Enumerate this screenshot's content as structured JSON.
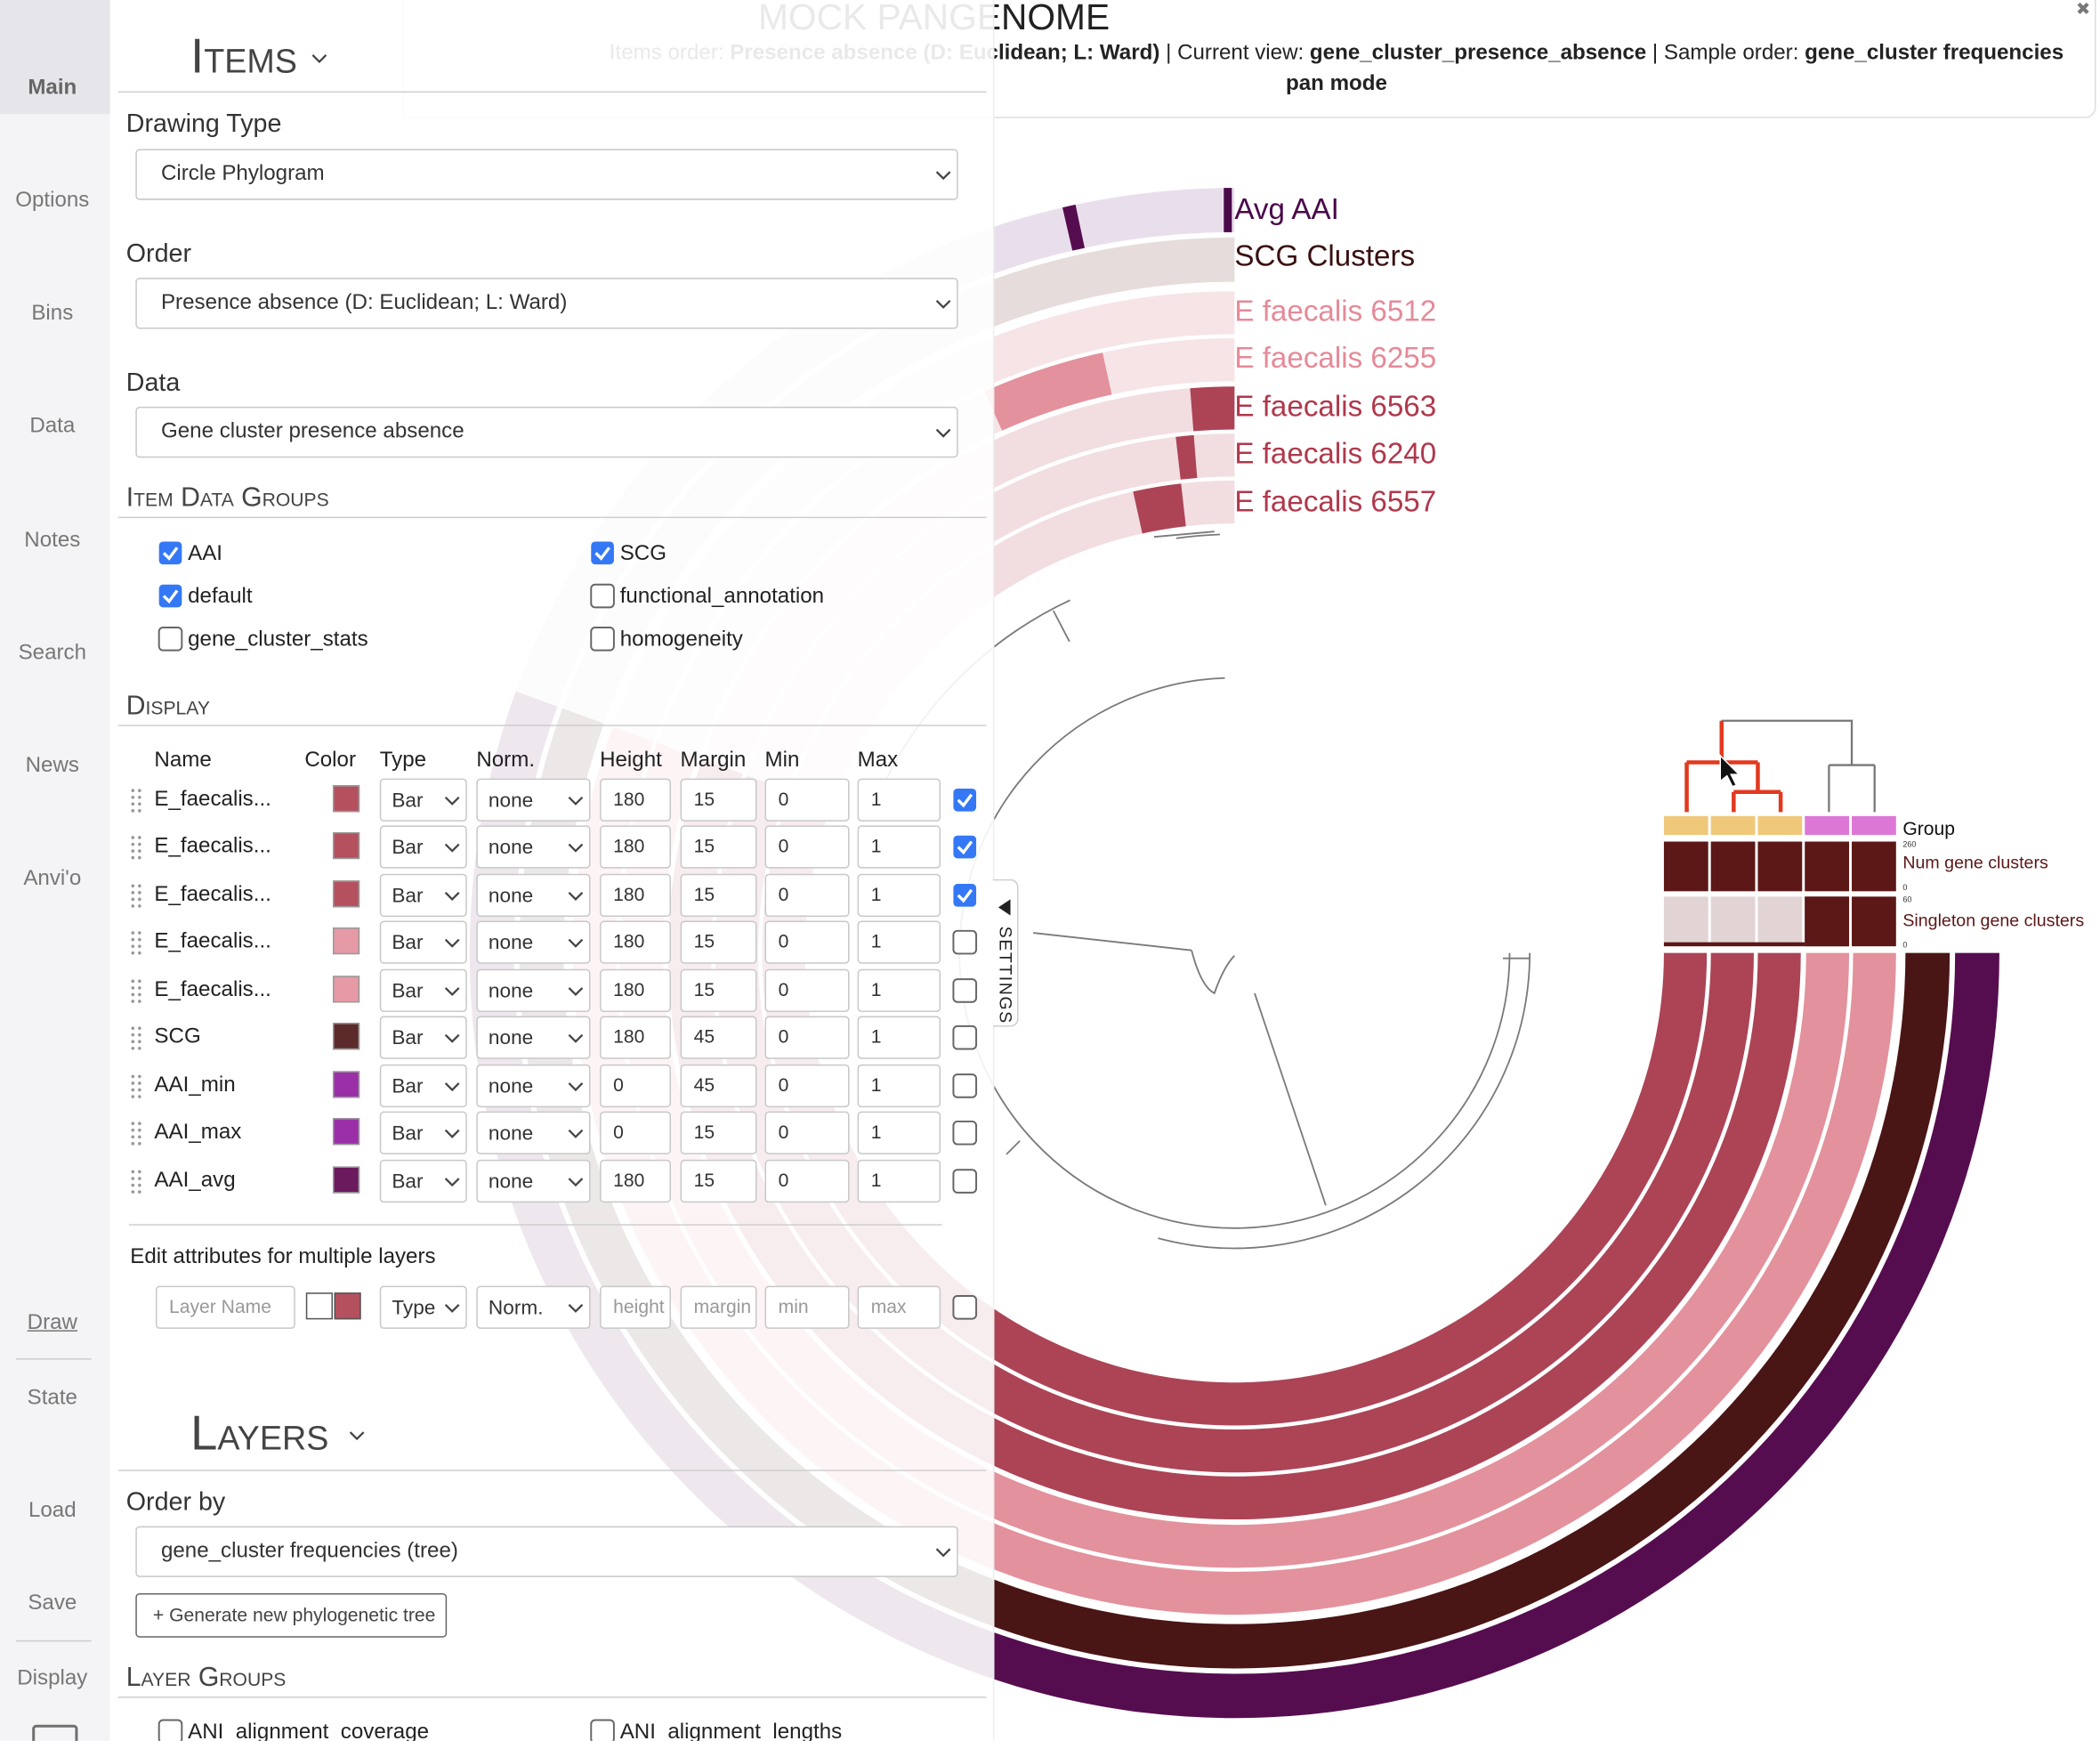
{
  "sidebar": [
    "Main",
    "Options",
    "Bins",
    "Data",
    "Notes",
    "Search",
    "News",
    "Anvi'o",
    "Draw",
    "State",
    "Load",
    "Save",
    "Display"
  ],
  "header": {
    "title": "MOCK PANGENOME",
    "items_order_label": "Items order:",
    "items_order": "Presence absence (D: Euclidean; L: Ward)",
    "separator": "|",
    "view_label": "Current view:",
    "view": "gene_cluster_presence_absence",
    "sample_order_label": "Sample order:",
    "sample_order": "gene_cluster frequencies",
    "mode": "pan mode",
    "close": "✖"
  },
  "items_panel": {
    "title": "Items",
    "drawing_type": {
      "label": "Drawing Type",
      "value": "Circle Phylogram"
    },
    "order": {
      "label": "Order",
      "value": "Presence absence (D: Euclidean; L: Ward)"
    },
    "data": {
      "label": "Data",
      "value": "Gene cluster presence absence"
    },
    "item_data_groups": {
      "title": "Item Data Groups",
      "options": [
        {
          "label": "AAI",
          "checked": true
        },
        {
          "label": "SCG",
          "checked": true
        },
        {
          "label": "default",
          "checked": true
        },
        {
          "label": "functional_annotation",
          "checked": false
        },
        {
          "label": "gene_cluster_stats",
          "checked": false
        },
        {
          "label": "homogeneity",
          "checked": false
        }
      ]
    },
    "display": {
      "title": "Display",
      "columns": [
        "Name",
        "Color",
        "Type",
        "Norm.",
        "Height",
        "Margin",
        "Min",
        "Max"
      ],
      "rows": [
        {
          "name": "E_faecalis...",
          "color": "#b5505f",
          "type": "Bar",
          "norm": "none",
          "height": 180,
          "margin": 15,
          "min": 0,
          "max": 1,
          "checked": true
        },
        {
          "name": "E_faecalis...",
          "color": "#b5505f",
          "type": "Bar",
          "norm": "none",
          "height": 180,
          "margin": 15,
          "min": 0,
          "max": 1,
          "checked": true
        },
        {
          "name": "E_faecalis...",
          "color": "#b5505f",
          "type": "Bar",
          "norm": "none",
          "height": 180,
          "margin": 15,
          "min": 0,
          "max": 1,
          "checked": true
        },
        {
          "name": "E_faecalis...",
          "color": "#e59aa5",
          "type": "Bar",
          "norm": "none",
          "height": 180,
          "margin": 15,
          "min": 0,
          "max": 1,
          "checked": false
        },
        {
          "name": "E_faecalis...",
          "color": "#e59aa5",
          "type": "Bar",
          "norm": "none",
          "height": 180,
          "margin": 15,
          "min": 0,
          "max": 1,
          "checked": false
        },
        {
          "name": "SCG",
          "color": "#5c2a2a",
          "type": "Bar",
          "norm": "none",
          "height": 180,
          "margin": 45,
          "min": 0,
          "max": 1,
          "checked": false
        },
        {
          "name": "AAI_min",
          "color": "#9b2fa8",
          "type": "Bar",
          "norm": "none",
          "height": 0,
          "margin": 45,
          "min": 0,
          "max": 1,
          "checked": false
        },
        {
          "name": "AAI_max",
          "color": "#9b2fa8",
          "type": "Bar",
          "norm": "none",
          "height": 0,
          "margin": 15,
          "min": 0,
          "max": 1,
          "checked": false
        },
        {
          "name": "AAI_avg",
          "color": "#6b1a5e",
          "type": "Bar",
          "norm": "none",
          "height": 180,
          "margin": 15,
          "min": 0,
          "max": 1,
          "checked": false
        }
      ]
    },
    "multi_edit": {
      "label": "Edit attributes for multiple layers",
      "name": "Layer Name",
      "color": "#b5505f",
      "type": "Type",
      "norm": "Norm.",
      "height": "height",
      "margin": "margin",
      "min": "min",
      "max": "max",
      "checked": false
    }
  },
  "layers_panel": {
    "title": "Layers",
    "order_by": {
      "label": "Order by",
      "value": "gene_cluster frequencies (tree)"
    },
    "button": "+ Generate new phylogenetic tree",
    "groups_title": "Layer Groups",
    "groups": [
      {
        "label": "ANI_alignment_coverage",
        "checked": false
      },
      {
        "label": "ANI_alignment_lengths",
        "checked": false
      }
    ]
  },
  "settings_tab": "SETTINGS",
  "tree_labels": [
    {
      "label": "Avg AAI",
      "color": "#4a0a4a"
    },
    {
      "label": "SCG Clusters",
      "color": "#3a1010"
    },
    {
      "label": "E faecalis 6512",
      "color": "#e58a98"
    },
    {
      "label": "E faecalis 6255",
      "color": "#e58a98"
    },
    {
      "label": "E faecalis 6563",
      "color": "#b0384c"
    },
    {
      "label": "E faecalis 6240",
      "color": "#b0384c"
    },
    {
      "label": "E faecalis 6557",
      "color": "#b0384c"
    }
  ],
  "sample_rows": [
    {
      "label": "Group",
      "color": "#111111"
    },
    {
      "label": "Num gene clusters",
      "color": "#5c1717",
      "max": 260,
      "min": 0
    },
    {
      "label": "Singleton gene clusters",
      "color": "#5c1717",
      "max": 60,
      "min": 0
    }
  ]
}
